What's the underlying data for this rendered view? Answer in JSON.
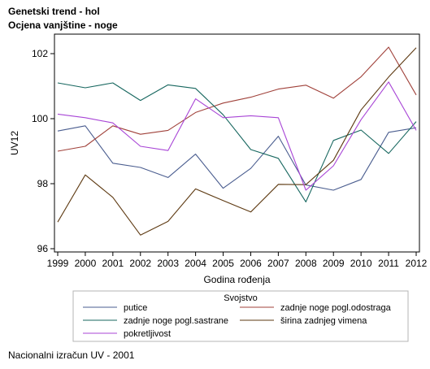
{
  "header": {
    "title_line1": "Genetski trend - hol",
    "title_line2": "Ocjena vanjštine - noge"
  },
  "footnote": "Nacionalni izračun UV - 2001",
  "chart_data": {
    "type": "line",
    "xlabel": "Godina rođenja",
    "ylabel": "UV12",
    "x": [
      1999,
      2000,
      2001,
      2002,
      2003,
      2004,
      2005,
      2006,
      2007,
      2008,
      2009,
      2010,
      2011,
      2012
    ],
    "ylim": [
      95.9,
      102.6
    ],
    "yticks": [
      96,
      98,
      100,
      102
    ],
    "grid": false,
    "legend": {
      "title": "Svojstvo",
      "placement": "bottom"
    },
    "series": [
      {
        "name": "putice",
        "color": "#4a5d8f",
        "values": [
          99.62,
          99.78,
          98.63,
          98.5,
          98.19,
          98.91,
          97.86,
          98.47,
          99.46,
          97.96,
          97.8,
          98.13,
          99.58,
          99.72
        ]
      },
      {
        "name": "zadnje noge pogl.odostraga",
        "color": "#a0413a",
        "values": [
          99.0,
          99.15,
          99.78,
          99.52,
          99.64,
          100.19,
          100.48,
          100.66,
          100.91,
          101.03,
          100.63,
          101.29,
          102.2,
          100.73
        ]
      },
      {
        "name": "zadnje noge pogl.sastrane",
        "color": "#17675f",
        "values": [
          101.1,
          100.95,
          101.1,
          100.56,
          101.04,
          100.93,
          100.12,
          99.05,
          98.78,
          97.44,
          99.33,
          99.65,
          98.93,
          99.91
        ]
      },
      {
        "name": "širina zadnjeg vimena",
        "color": "#5e3a12",
        "values": [
          96.82,
          98.27,
          97.58,
          96.42,
          96.84,
          97.84,
          97.48,
          97.13,
          97.98,
          97.97,
          98.72,
          100.27,
          101.28,
          102.18
        ]
      },
      {
        "name": "pokretljivost",
        "color": "#a845d6",
        "values": [
          100.14,
          100.03,
          99.87,
          99.15,
          99.02,
          100.61,
          100.03,
          100.09,
          100.03,
          97.8,
          98.55,
          99.97,
          101.13,
          99.64
        ]
      }
    ]
  }
}
